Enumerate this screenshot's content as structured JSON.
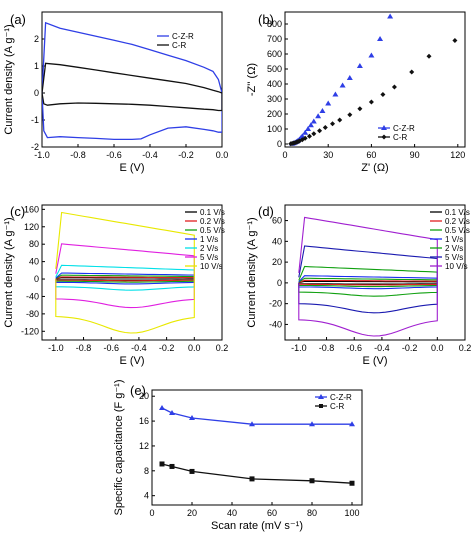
{
  "panels": [
    {
      "panel_label": "(a)",
      "type": "line",
      "xlabel": "E (V)",
      "ylabel": "Current density (A g⁻¹)",
      "xlim": [
        -1.0,
        0.0
      ],
      "ylim": [
        -2,
        3
      ],
      "xticks": [
        "-1.0",
        "-0.8",
        "-0.6",
        "-0.4",
        "-0.2",
        "0.0"
      ],
      "yticks": [
        "-2",
        "-1",
        "0",
        "1",
        "2"
      ],
      "legend": "top-right",
      "series": [
        {
          "name": "C-Z-R",
          "color": "#2f3fe6",
          "marker": "line",
          "x": [
            -1.0,
            -0.98,
            -0.9,
            -0.8,
            -0.7,
            -0.6,
            -0.5,
            -0.4,
            -0.3,
            -0.2,
            -0.1,
            -0.05,
            -0.02,
            0.0,
            0.0,
            -0.02,
            -0.05,
            -0.1,
            -0.2,
            -0.3,
            -0.4,
            -0.45,
            -0.5,
            -0.6,
            -0.7,
            -0.8,
            -0.9,
            -0.97,
            -0.99,
            -1.0
          ],
          "y": [
            0.0,
            2.6,
            2.4,
            2.25,
            2.1,
            1.95,
            1.8,
            1.6,
            1.4,
            1.2,
            0.95,
            0.8,
            0.5,
            0.0,
            -1.45,
            -1.45,
            -1.4,
            -1.35,
            -1.25,
            -1.3,
            -1.55,
            -1.7,
            -1.72,
            -1.72,
            -1.68,
            -1.65,
            -1.62,
            -1.65,
            -1.4,
            0.0
          ]
        },
        {
          "name": "C-R",
          "color": "#111111",
          "marker": "line",
          "x": [
            -1.0,
            -0.98,
            -0.9,
            -0.8,
            -0.7,
            -0.6,
            -0.5,
            -0.4,
            -0.3,
            -0.2,
            -0.1,
            -0.05,
            -0.02,
            0.0,
            0.0,
            -0.02,
            -0.05,
            -0.1,
            -0.2,
            -0.3,
            -0.4,
            -0.5,
            -0.6,
            -0.7,
            -0.8,
            -0.9,
            -0.97,
            -0.99,
            -1.0
          ],
          "y": [
            0.0,
            1.1,
            1.05,
            0.95,
            0.85,
            0.75,
            0.65,
            0.55,
            0.45,
            0.35,
            0.2,
            0.1,
            0.05,
            0.0,
            -0.65,
            -0.65,
            -0.62,
            -0.6,
            -0.55,
            -0.5,
            -0.45,
            -0.42,
            -0.4,
            -0.38,
            -0.37,
            -0.4,
            -0.45,
            -0.4,
            0.0
          ]
        }
      ]
    },
    {
      "panel_label": "(b)",
      "type": "scatter",
      "xlabel": "Z' (Ω)",
      "ylabel": "-Z'' (Ω)",
      "xlim": [
        0,
        125
      ],
      "ylim": [
        -20,
        880
      ],
      "xticks": [
        "0",
        "30",
        "60",
        "90",
        "120"
      ],
      "yticks": [
        "0",
        "100",
        "200",
        "300",
        "400",
        "500",
        "600",
        "700",
        "800"
      ],
      "legend": "bottom-right",
      "series": [
        {
          "name": "C-Z-R",
          "color": "#2f3fe6",
          "marker": "triangle",
          "x": [
            5,
            6,
            7,
            8,
            9,
            10,
            11,
            12,
            14,
            16,
            18,
            20,
            23,
            26,
            30,
            35,
            40,
            45,
            52,
            60,
            66,
            73
          ],
          "y": [
            2,
            5,
            10,
            15,
            22,
            30,
            40,
            52,
            75,
            100,
            125,
            150,
            185,
            220,
            270,
            330,
            390,
            440,
            520,
            590,
            700,
            850
          ]
        },
        {
          "name": "C-R",
          "color": "#111111",
          "marker": "diamond",
          "x": [
            4,
            5,
            6,
            7,
            8,
            9,
            10,
            12,
            14,
            17,
            20,
            24,
            28,
            33,
            38,
            45,
            52,
            60,
            68,
            76,
            88,
            100,
            118
          ],
          "y": [
            2,
            4,
            6,
            9,
            12,
            16,
            20,
            28,
            38,
            52,
            68,
            88,
            110,
            135,
            160,
            195,
            235,
            280,
            330,
            380,
            480,
            585,
            690
          ]
        }
      ]
    },
    {
      "panel_label": "(c)",
      "type": "line",
      "xlabel": "E (V)",
      "ylabel": "Current density (A g⁻¹)",
      "xlim": [
        -1.1,
        0.2
      ],
      "ylim": [
        -140,
        170
      ],
      "xticks": [
        "-1.0",
        "-0.8",
        "-0.6",
        "-0.4",
        "-0.2",
        "0.0",
        "0.2"
      ],
      "yticks": [
        "-120",
        "-80",
        "-40",
        "0",
        "40",
        "80",
        "120",
        "160"
      ],
      "legend": "top-right",
      "series": [
        {
          "name": "0.1 V/s",
          "color": "#000000",
          "amp": 3
        },
        {
          "name": "0.2 V/s",
          "color": "#e02020",
          "amp": 5
        },
        {
          "name": "0.5 V/s",
          "color": "#10a010",
          "amp": 9
        },
        {
          "name": "1 V/s",
          "color": "#1a2ff0",
          "amp": 14
        },
        {
          "name": "2 V/s",
          "color": "#00e0e8",
          "amp": 32
        },
        {
          "name": "5 V/s",
          "color": "#e020e0",
          "amp": 82
        },
        {
          "name": "10 V/s",
          "color": "#e8e800",
          "amp": 155
        }
      ]
    },
    {
      "panel_label": "(d)",
      "type": "line",
      "xlabel": "E (V)",
      "ylabel": "Current density (A g⁻¹)",
      "xlim": [
        -1.1,
        0.2
      ],
      "ylim": [
        -55,
        75
      ],
      "xticks": [
        "-1.0",
        "-0.8",
        "-0.6",
        "-0.4",
        "-0.2",
        "0.0",
        "0.2"
      ],
      "yticks": [
        "-40",
        "-20",
        "0",
        "20",
        "40",
        "60"
      ],
      "legend": "top-right",
      "series": [
        {
          "name": "0.1 V/s",
          "color": "#000000",
          "amp": 1.5
        },
        {
          "name": "0.2 V/s",
          "color": "#e02020",
          "amp": 2.5
        },
        {
          "name": "0.5 V/s",
          "color": "#10a010",
          "amp": 4.5
        },
        {
          "name": "1 V/s",
          "color": "#1a2ff0",
          "amp": 7
        },
        {
          "name": "2 V/s",
          "color": "#10a010",
          "amp": 16
        },
        {
          "name": "5 V/s",
          "color": "#1a1ab0",
          "amp": 36
        },
        {
          "name": "10 V/s",
          "color": "#a020d0",
          "amp": 64
        }
      ]
    },
    {
      "panel_label": "(e)",
      "type": "line",
      "xlabel": "Scan rate (mV s⁻¹)",
      "ylabel": "Specific capacitance (F g⁻¹)",
      "xlim": [
        0,
        105
      ],
      "ylim": [
        2.5,
        21
      ],
      "xticks": [
        "0",
        "20",
        "40",
        "60",
        "80",
        "100"
      ],
      "yticks": [
        "4",
        "8",
        "12",
        "16",
        "20"
      ],
      "legend": "top-right",
      "series": [
        {
          "name": "C-Z-R",
          "color": "#2f3fe6",
          "marker": "triangle",
          "x": [
            5,
            10,
            20,
            50,
            80,
            100
          ],
          "y": [
            18.1,
            17.3,
            16.5,
            15.5,
            15.5,
            15.5
          ]
        },
        {
          "name": "C-R",
          "color": "#111111",
          "marker": "square",
          "x": [
            5,
            10,
            20,
            50,
            80,
            100
          ],
          "y": [
            9.1,
            8.7,
            7.9,
            6.7,
            6.4,
            6.0
          ]
        }
      ]
    }
  ]
}
